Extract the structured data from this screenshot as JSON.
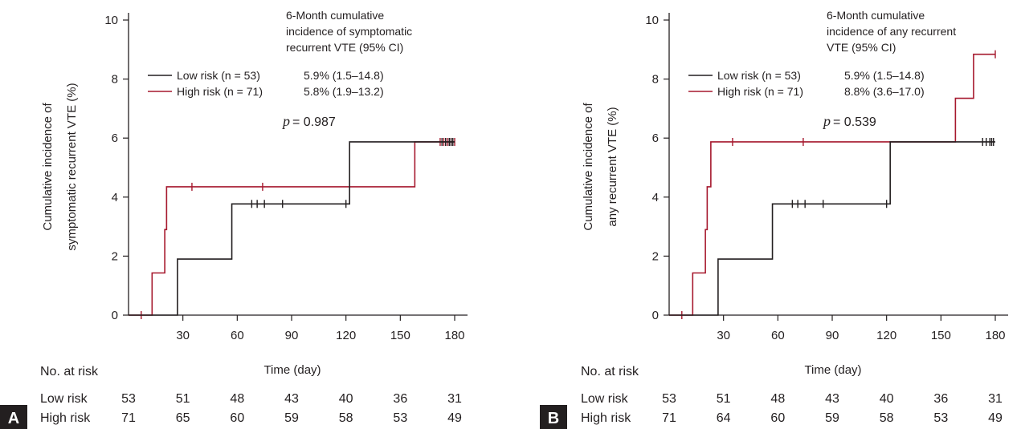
{
  "chart_data": [
    {
      "type": "line",
      "panel_label": "A",
      "ylabel_line1": "Cumulative incidence of",
      "ylabel_line2": "symptomatic recurrent VTE (%)",
      "xlabel": "Time (day)",
      "xticks": [
        30,
        60,
        90,
        120,
        150,
        180
      ],
      "yticks": [
        0,
        2,
        4,
        6,
        8,
        10
      ],
      "xlim": [
        0,
        180
      ],
      "ylim": [
        0,
        10
      ],
      "annotation_title": [
        "6-Month cumulative",
        "incidence of symptomatic",
        "recurrent VTE (95% CI)"
      ],
      "p_label": "p",
      "p_value": "= 0.987",
      "colors": {
        "low": "#231f20",
        "high": "#a6192e"
      },
      "series": [
        {
          "key": "low",
          "name": "Low risk (n = 53)",
          "ci": "5.9% (1.5–14.8)",
          "steps": [
            [
              0,
              0
            ],
            [
              27,
              1.9
            ],
            [
              57,
              3.77
            ],
            [
              122,
              5.87
            ],
            [
              180,
              5.87
            ]
          ],
          "censor": [
            68,
            71,
            75,
            85,
            120,
            173,
            175,
            177,
            178,
            179
          ]
        },
        {
          "key": "high",
          "name": "High risk (n = 71)",
          "ci": "5.8% (1.9–13.2)",
          "steps": [
            [
              0,
              0
            ],
            [
              13,
              1.43
            ],
            [
              20,
              2.9
            ],
            [
              21,
              4.35
            ],
            [
              158,
              5.87
            ],
            [
              180,
              5.87
            ]
          ],
          "censor": [
            7,
            35,
            74,
            172,
            174,
            176,
            177,
            178,
            179,
            180
          ]
        }
      ],
      "at_risk": {
        "header": "No. at risk",
        "rows": [
          {
            "label": "Low risk",
            "values": [
              53,
              51,
              48,
              43,
              40,
              36,
              31
            ]
          },
          {
            "label": "High risk",
            "values": [
              71,
              65,
              60,
              59,
              58,
              53,
              49
            ]
          }
        ]
      }
    },
    {
      "type": "line",
      "panel_label": "B",
      "ylabel_line1": "Cumulative incidence of",
      "ylabel_line2": "any recurrent VTE (%)",
      "xlabel": "Time (day)",
      "xticks": [
        30,
        60,
        90,
        120,
        150,
        180
      ],
      "yticks": [
        0,
        2,
        4,
        6,
        8,
        10
      ],
      "xlim": [
        0,
        180
      ],
      "ylim": [
        0,
        10
      ],
      "annotation_title": [
        "6-Month cumulative",
        "incidence of any recurrent",
        "VTE (95% CI)"
      ],
      "p_label": "p",
      "p_value": "= 0.539",
      "colors": {
        "low": "#231f20",
        "high": "#a6192e"
      },
      "series": [
        {
          "key": "low",
          "name": "Low risk (n = 53)",
          "ci": "5.9% (1.5–14.8)",
          "steps": [
            [
              0,
              0
            ],
            [
              27,
              1.9
            ],
            [
              57,
              3.77
            ],
            [
              122,
              5.87
            ],
            [
              180,
              5.87
            ]
          ],
          "censor": [
            68,
            71,
            75,
            85,
            120,
            173,
            175,
            177,
            178,
            179
          ]
        },
        {
          "key": "high",
          "name": "High risk (n = 71)",
          "ci": "8.8% (3.6–17.0)",
          "steps": [
            [
              0,
              0
            ],
            [
              13,
              1.43
            ],
            [
              20,
              2.9
            ],
            [
              21,
              4.35
            ],
            [
              23,
              5.87
            ],
            [
              158,
              7.35
            ],
            [
              168,
              8.84
            ],
            [
              180,
              8.84
            ]
          ],
          "censor": [
            7,
            35,
            74,
            180
          ]
        }
      ],
      "at_risk": {
        "header": "No. at risk",
        "rows": [
          {
            "label": "Low risk",
            "values": [
              53,
              51,
              48,
              43,
              40,
              36,
              31
            ]
          },
          {
            "label": "High risk",
            "values": [
              71,
              64,
              60,
              59,
              58,
              53,
              49
            ]
          }
        ]
      }
    }
  ]
}
